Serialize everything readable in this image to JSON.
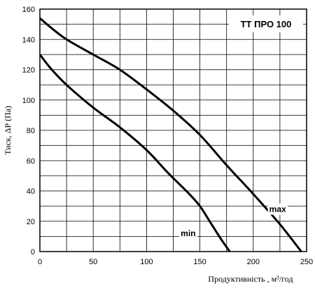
{
  "chart_data": {
    "type": "line",
    "title": "ТТ ПРО 100",
    "xlabel": "Продуктивність , м³/год",
    "ylabel": "Тиск, ΔР (Па)",
    "xlim": [
      0,
      250
    ],
    "ylim": [
      0,
      160
    ],
    "xticks": [
      0,
      50,
      100,
      150,
      200,
      250
    ],
    "yticks": [
      0,
      20,
      40,
      60,
      80,
      100,
      120,
      140,
      160
    ],
    "grid": true,
    "series": [
      {
        "name": "max",
        "x": [
          0,
          10,
          25,
          50,
          75,
          100,
          125,
          150,
          175,
          200,
          225,
          245
        ],
        "y": [
          154,
          148,
          140,
          130,
          120,
          107,
          93,
          77,
          57,
          38,
          18,
          0
        ]
      },
      {
        "name": "min",
        "x": [
          0,
          10,
          25,
          50,
          75,
          100,
          120,
          140,
          150,
          160,
          170,
          178
        ],
        "y": [
          130,
          121,
          110,
          95,
          82,
          67,
          52,
          38,
          30,
          19,
          8,
          0
        ]
      }
    ]
  }
}
